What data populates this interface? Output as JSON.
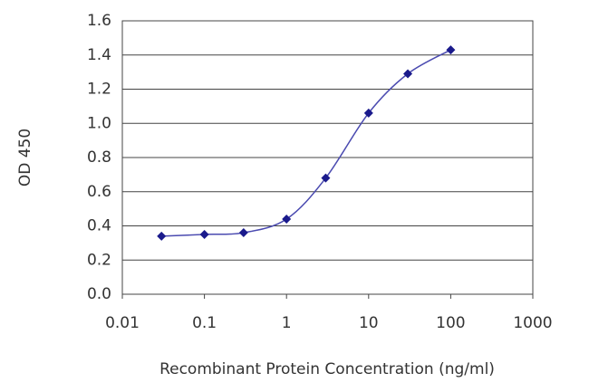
{
  "chart_data": {
    "type": "line",
    "x_label": "Recombinant Protein Concentration (ng/ml)",
    "y_label": "OD 450",
    "x": [
      0.03,
      0.1,
      0.3,
      1,
      3,
      10,
      30,
      100
    ],
    "values": [
      0.34,
      0.35,
      0.36,
      0.44,
      0.68,
      1.06,
      1.29,
      1.43
    ],
    "color": "#1a1a8c",
    "xscale": "log",
    "xlim": [
      0.01,
      1000
    ],
    "xticks": [
      0.01,
      0.1,
      1,
      10,
      100,
      1000
    ],
    "ylim": [
      0,
      1.6
    ],
    "yticks": [
      {
        "value": 0,
        "label": "0.0"
      },
      0.2,
      0.4,
      0.6,
      0.8,
      {
        "value": 1,
        "label": "1.0"
      },
      1.2,
      1.4,
      1.6
    ],
    "grid": true
  }
}
